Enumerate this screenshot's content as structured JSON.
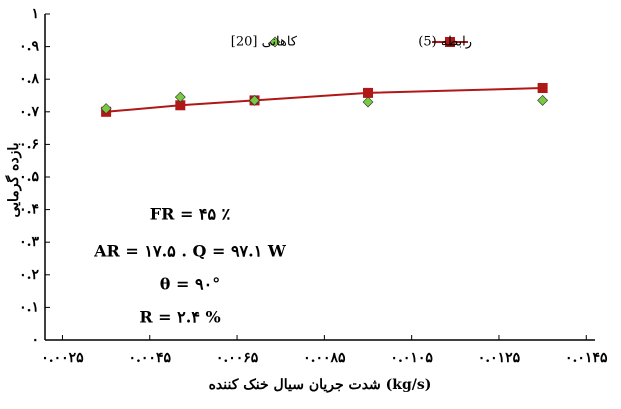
{
  "chart_data": {
    "type": "line",
    "x_label": "شدت جریان سیال خنک کننده (kg/s)",
    "y_label": "بازده گرمایی",
    "xlim": [
      0.0021,
      0.0147
    ],
    "xticks": [
      {
        "value": 0.0025,
        "label": "۰.۰۰۲۵"
      },
      {
        "value": 0.0045,
        "label": "۰.۰۰۴۵"
      },
      {
        "value": 0.0065,
        "label": "۰.۰۰۶۵"
      },
      {
        "value": 0.0085,
        "label": "۰.۰۰۸۵"
      },
      {
        "value": 0.0105,
        "label": "۰.۰۱۰۵"
      },
      {
        "value": 0.0125,
        "label": "۰.۰۱۲۵"
      },
      {
        "value": 0.0145,
        "label": "۰.۰۱۴۵"
      }
    ],
    "ylim": [
      0,
      1
    ],
    "yticks": [
      {
        "value": 0,
        "label": "۰"
      },
      {
        "value": 0.1,
        "label": "۰.۱"
      },
      {
        "value": 0.2,
        "label": "۰.۲"
      },
      {
        "value": 0.3,
        "label": "۰.۳"
      },
      {
        "value": 0.4,
        "label": "۰.۴"
      },
      {
        "value": 0.5,
        "label": "۰.۵"
      },
      {
        "value": 0.6,
        "label": "۰.۶"
      },
      {
        "value": 0.7,
        "label": "۰.۷"
      },
      {
        "value": 0.8,
        "label": "۰.۸"
      },
      {
        "value": 0.9,
        "label": "۰.۹"
      },
      {
        "value": 1,
        "label": "۱"
      }
    ],
    "series": [
      {
        "name": "رابطه (5)",
        "color": "#b01818",
        "marker": "square",
        "line": true,
        "x": [
          0.0035,
          0.0052,
          0.0069,
          0.0095,
          0.0135
        ],
        "values": [
          0.7,
          0.72,
          0.735,
          0.758,
          0.773
        ]
      },
      {
        "name": "کاهانی [20]",
        "color": "#7ac943",
        "marker": "diamond",
        "line": false,
        "x": [
          0.0035,
          0.0052,
          0.0069,
          0.0095,
          0.0135
        ],
        "values": [
          0.71,
          0.745,
          0.735,
          0.73,
          0.735
        ]
      }
    ],
    "annotations": [
      "FR = ۴۵ ٪",
      "AR = ۱۷.۵ . Q = ۹۷.۱ W",
      "θ = ۹۰°",
      "R = ۲.۴ %"
    ]
  }
}
